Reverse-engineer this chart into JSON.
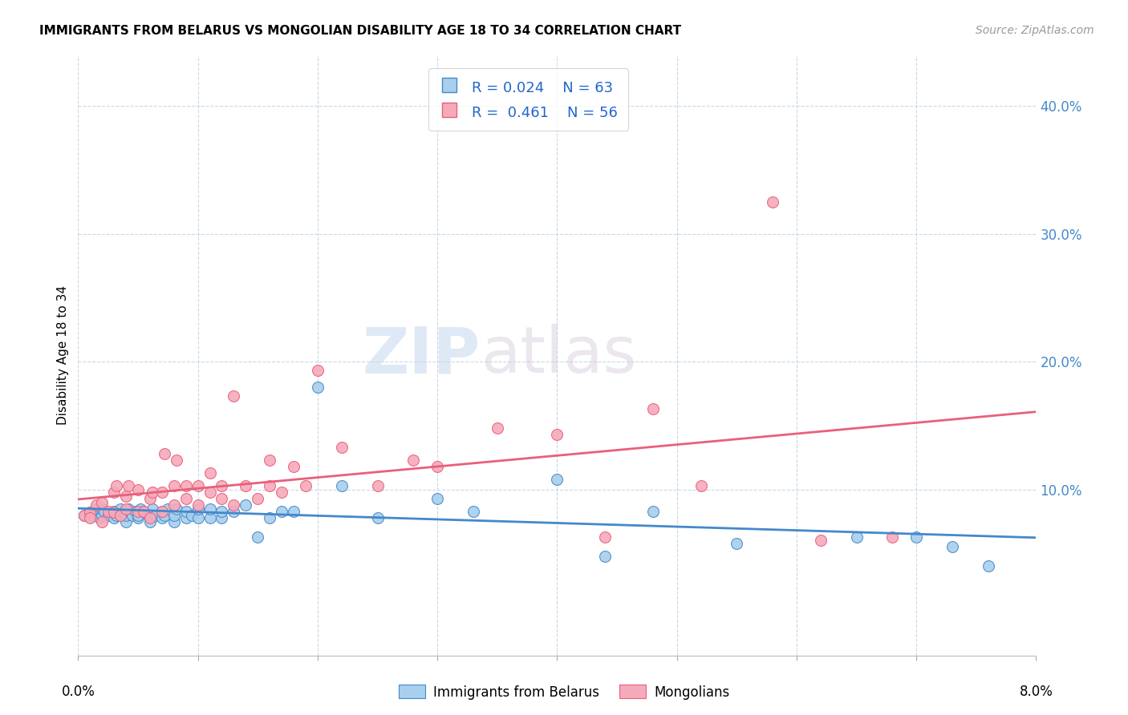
{
  "title": "IMMIGRANTS FROM BELARUS VS MONGOLIAN DISABILITY AGE 18 TO 34 CORRELATION CHART",
  "source": "Source: ZipAtlas.com",
  "ylabel": "Disability Age 18 to 34",
  "xlim": [
    0.0,
    0.08
  ],
  "ylim": [
    -0.03,
    0.44
  ],
  "ytick_positions": [
    0.1,
    0.2,
    0.3,
    0.4
  ],
  "ytick_labels": [
    "10.0%",
    "20.0%",
    "30.0%",
    "40.0%"
  ],
  "xtick_positions": [
    0.0,
    0.01,
    0.02,
    0.03,
    0.04,
    0.05,
    0.06,
    0.07,
    0.08
  ],
  "legend_r_blue": "0.024",
  "legend_n_blue": "63",
  "legend_r_pink": "0.461",
  "legend_n_pink": "56",
  "legend_label_blue": "Immigrants from Belarus",
  "legend_label_pink": "Mongolians",
  "color_blue_fill": "#A8CFEB",
  "color_pink_fill": "#F5AABB",
  "color_blue_edge": "#4488CC",
  "color_pink_edge": "#E8607A",
  "color_blue_line": "#4488CC",
  "color_pink_line": "#E8607A",
  "watermark_zip": "ZIP",
  "watermark_atlas": "atlas",
  "blue_trend_x": [
    0.0,
    0.08
  ],
  "blue_trend_y": [
    0.083,
    0.087
  ],
  "pink_trend_x": [
    0.0,
    0.08
  ],
  "pink_trend_y": [
    0.075,
    0.2
  ],
  "blue_scatter_x": [
    0.0005,
    0.001,
    0.0012,
    0.0015,
    0.0018,
    0.002,
    0.002,
    0.0022,
    0.0025,
    0.0028,
    0.003,
    0.003,
    0.0032,
    0.0035,
    0.0038,
    0.004,
    0.004,
    0.0042,
    0.0045,
    0.0048,
    0.005,
    0.005,
    0.0052,
    0.0055,
    0.006,
    0.006,
    0.0062,
    0.0065,
    0.007,
    0.007,
    0.0072,
    0.0075,
    0.008,
    0.008,
    0.0082,
    0.009,
    0.009,
    0.0095,
    0.01,
    0.01,
    0.011,
    0.011,
    0.012,
    0.012,
    0.013,
    0.014,
    0.015,
    0.016,
    0.017,
    0.018,
    0.02,
    0.022,
    0.025,
    0.03,
    0.033,
    0.04,
    0.044,
    0.048,
    0.055,
    0.065,
    0.07,
    0.073,
    0.076
  ],
  "blue_scatter_y": [
    0.08,
    0.082,
    0.08,
    0.085,
    0.078,
    0.08,
    0.085,
    0.083,
    0.08,
    0.082,
    0.078,
    0.083,
    0.08,
    0.085,
    0.082,
    0.075,
    0.08,
    0.085,
    0.08,
    0.083,
    0.078,
    0.08,
    0.085,
    0.083,
    0.075,
    0.08,
    0.085,
    0.08,
    0.078,
    0.083,
    0.08,
    0.085,
    0.075,
    0.08,
    0.085,
    0.078,
    0.083,
    0.08,
    0.078,
    0.085,
    0.078,
    0.085,
    0.078,
    0.083,
    0.083,
    0.088,
    0.063,
    0.078,
    0.083,
    0.083,
    0.18,
    0.103,
    0.078,
    0.093,
    0.083,
    0.108,
    0.048,
    0.083,
    0.058,
    0.063,
    0.063,
    0.055,
    0.04
  ],
  "pink_scatter_x": [
    0.0005,
    0.001,
    0.001,
    0.0015,
    0.002,
    0.002,
    0.0025,
    0.003,
    0.003,
    0.0032,
    0.0035,
    0.004,
    0.004,
    0.0042,
    0.005,
    0.005,
    0.0055,
    0.006,
    0.006,
    0.0062,
    0.007,
    0.007,
    0.0072,
    0.008,
    0.008,
    0.0082,
    0.009,
    0.009,
    0.01,
    0.01,
    0.011,
    0.011,
    0.012,
    0.012,
    0.013,
    0.013,
    0.014,
    0.015,
    0.016,
    0.016,
    0.017,
    0.018,
    0.019,
    0.02,
    0.022,
    0.025,
    0.028,
    0.03,
    0.035,
    0.04,
    0.044,
    0.048,
    0.052,
    0.058,
    0.062,
    0.068
  ],
  "pink_scatter_y": [
    0.08,
    0.082,
    0.078,
    0.088,
    0.075,
    0.09,
    0.083,
    0.082,
    0.098,
    0.103,
    0.08,
    0.085,
    0.095,
    0.103,
    0.083,
    0.1,
    0.083,
    0.078,
    0.093,
    0.098,
    0.083,
    0.098,
    0.128,
    0.088,
    0.103,
    0.123,
    0.093,
    0.103,
    0.088,
    0.103,
    0.098,
    0.113,
    0.093,
    0.103,
    0.088,
    0.173,
    0.103,
    0.093,
    0.103,
    0.123,
    0.098,
    0.118,
    0.103,
    0.193,
    0.133,
    0.103,
    0.123,
    0.118,
    0.148,
    0.143,
    0.063,
    0.163,
    0.103,
    0.325,
    0.06,
    0.063
  ]
}
